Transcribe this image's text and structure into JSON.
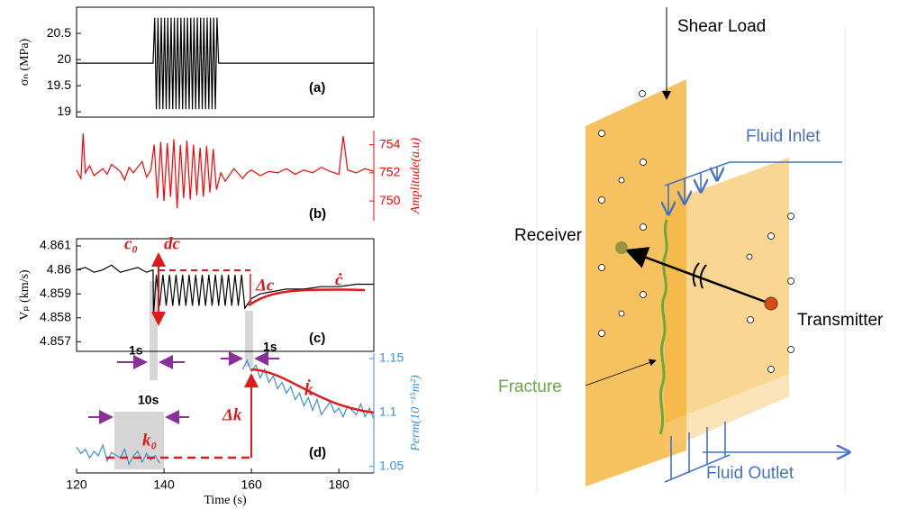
{
  "chart_data": [
    {
      "type": "line",
      "panel_label": "(a)",
      "ylabel": "σₙ (MPa)",
      "y_axis": "left",
      "color": "#000000",
      "xlim": [
        120,
        188
      ],
      "ylim": [
        18.9,
        21.0
      ],
      "yticks": [
        19,
        19.5,
        20,
        20.5
      ],
      "x": [
        120,
        137.5,
        137.875,
        138.25,
        138.625,
        139,
        139.375,
        139.75,
        140.125,
        140.5,
        140.875,
        141.25,
        141.625,
        142,
        142.375,
        142.75,
        143.125,
        143.5,
        143.875,
        144.25,
        144.625,
        145,
        145.375,
        145.75,
        146.125,
        146.5,
        146.875,
        147.25,
        147.625,
        148,
        148.375,
        148.75,
        149.125,
        149.5,
        149.875,
        150.25,
        150.625,
        151,
        151.375,
        151.75,
        152.125,
        152.5,
        188
      ],
      "values": [
        19.93,
        19.93,
        20.8,
        19.05,
        20.8,
        19.05,
        20.8,
        19.05,
        20.8,
        19.05,
        20.8,
        19.05,
        20.8,
        19.05,
        20.8,
        19.05,
        20.8,
        19.05,
        20.8,
        19.05,
        20.8,
        19.05,
        20.8,
        19.05,
        20.8,
        19.05,
        20.8,
        19.05,
        20.8,
        19.05,
        20.8,
        19.05,
        20.8,
        19.05,
        20.8,
        19.05,
        20.8,
        19.05,
        20.8,
        19.05,
        20.8,
        19.93,
        19.93
      ]
    },
    {
      "type": "line",
      "panel_label": "(b)",
      "ylabel": "Amplitude(a.u)",
      "y_axis": "right",
      "color": "#ff0000",
      "xlim": [
        120,
        188
      ],
      "ylim": [
        748.6,
        755
      ],
      "yticks": [
        750,
        752,
        754
      ],
      "x": [
        120,
        121,
        121.5,
        122,
        123,
        124,
        126,
        127,
        128,
        130,
        131,
        132,
        133,
        135,
        136,
        137,
        137.75,
        138.5,
        139.25,
        140,
        140.75,
        141.5,
        142.25,
        143,
        143.75,
        144.5,
        145.25,
        146,
        146.75,
        147.5,
        148.25,
        149,
        149.75,
        150.5,
        151.25,
        152,
        153,
        154,
        156,
        158,
        159,
        160,
        162,
        164,
        166,
        168,
        170,
        172,
        174,
        176,
        178,
        180,
        181,
        182,
        184,
        186,
        188
      ],
      "values": [
        752.2,
        751.6,
        754.8,
        752.0,
        752.5,
        751.8,
        752.3,
        751.9,
        752.6,
        752.1,
        751.5,
        752.4,
        752.0,
        752.8,
        751.7,
        752.2,
        754.0,
        750.2,
        754.2,
        750.0,
        754.1,
        750.3,
        754.4,
        749.5,
        754.0,
        750.2,
        754.3,
        750.1,
        754.0,
        750.4,
        753.8,
        750.3,
        753.9,
        750.6,
        753.7,
        750.8,
        752.0,
        751.4,
        752.3,
        751.6,
        752.0,
        752.2,
        751.8,
        752.1,
        752.0,
        752.3,
        751.9,
        752.2,
        752.0,
        752.4,
        752.1,
        751.9,
        754.6,
        752.2,
        752.0,
        752.3,
        752.1
      ]
    },
    {
      "type": "line",
      "panel_label": "(c)",
      "ylabel": "Vₚ (km/s)",
      "y_axis": "left",
      "color": "#000000",
      "xlim": [
        120,
        188
      ],
      "ylim": [
        4.8566,
        4.8613
      ],
      "yticks": [
        4.857,
        4.858,
        4.859,
        4.86,
        4.861
      ],
      "x": [
        120,
        122,
        124,
        126,
        128,
        130,
        132,
        134,
        136,
        137.5,
        137.6,
        138.25,
        139,
        139.75,
        140.5,
        141.25,
        142,
        142.75,
        143.5,
        144.25,
        145,
        145.75,
        146.5,
        147.25,
        148,
        148.75,
        149.5,
        150.25,
        151,
        151.75,
        152.5,
        153.25,
        154,
        154.75,
        155.5,
        156.25,
        157,
        157.75,
        158.5,
        160,
        162,
        165,
        168,
        172,
        176,
        180,
        184,
        188
      ],
      "values": [
        4.86,
        4.8601,
        4.8599,
        4.86,
        4.8602,
        4.8599,
        4.86,
        4.8601,
        4.8599,
        4.86,
        4.8581,
        4.8598,
        4.8585,
        4.8598,
        4.8585,
        4.8598,
        4.8585,
        4.8598,
        4.8585,
        4.8598,
        4.8585,
        4.8598,
        4.8585,
        4.8598,
        4.8585,
        4.8598,
        4.8585,
        4.8598,
        4.8585,
        4.8598,
        4.8585,
        4.8598,
        4.8585,
        4.8598,
        4.8585,
        4.8598,
        4.8585,
        4.8598,
        4.8584,
        4.8588,
        4.859,
        4.8591,
        4.8592,
        4.8592,
        4.8593,
        4.8593,
        4.8594,
        4.8594
      ],
      "annotations": [
        "c₀",
        "dc",
        "Δc",
        "ċ",
        "1s"
      ]
    },
    {
      "type": "line",
      "panel_label": "(d)",
      "ylabel": "Perm(10⁻¹⁵m²)",
      "y_axis": "right",
      "color": "#3b8fd4",
      "xlabel": "Time (s)",
      "xlim": [
        120,
        188
      ],
      "xticks": [
        120,
        140,
        160,
        180
      ],
      "ylim": [
        1.044,
        1.155
      ],
      "yticks": [
        1.05,
        1.1,
        1.15
      ],
      "x": [
        120,
        121,
        122,
        123,
        124,
        125,
        126,
        127,
        128,
        130,
        131,
        132,
        133,
        134,
        135,
        136,
        137,
        138,
        139,
        141,
        158,
        159,
        160,
        161,
        162,
        163,
        164,
        165,
        166,
        167,
        168,
        169,
        170,
        171,
        172,
        173,
        174,
        175,
        176,
        178,
        179,
        180,
        181,
        182,
        184,
        185,
        186,
        187,
        188
      ],
      "values": [
        1.068,
        1.062,
        1.066,
        1.058,
        1.064,
        1.06,
        1.07,
        1.055,
        1.063,
        1.058,
        1.066,
        1.052,
        1.06,
        1.064,
        1.054,
        1.062,
        1.056,
        1.06,
        1.053,
        null,
        1.14,
        1.148,
        1.138,
        1.144,
        1.132,
        1.14,
        1.128,
        1.134,
        1.122,
        1.128,
        1.118,
        1.124,
        1.112,
        1.118,
        1.106,
        1.114,
        1.102,
        1.112,
        1.098,
        1.11,
        1.1,
        1.104,
        1.096,
        1.106,
        1.098,
        1.108,
        1.096,
        1.104,
        1.094
      ],
      "annotations": [
        "10s",
        "k₀",
        "Δk",
        "k̇",
        "1s"
      ]
    }
  ],
  "diagram": {
    "shear_load": "Shear Load",
    "fluid_inlet": "Fluid Inlet",
    "receiver": "Receiver",
    "transmitter": "Transmitter",
    "fracture": "Fracture",
    "fluid_outlet": "Fluid Outlet"
  }
}
